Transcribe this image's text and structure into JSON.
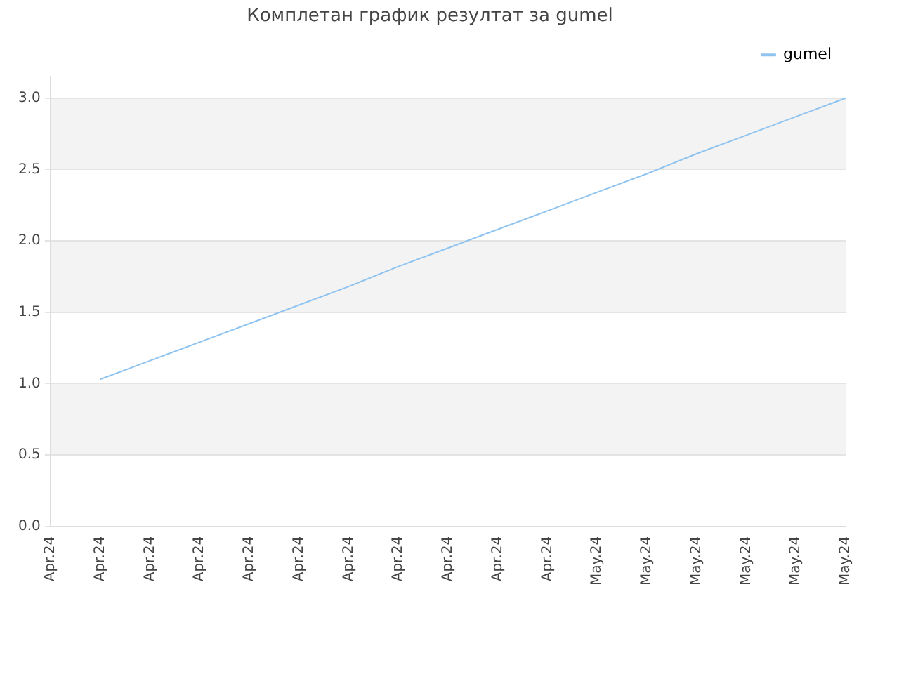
{
  "chart_data": {
    "type": "line",
    "title": "Комплетан график резултат за gumel",
    "categories": [
      "Apr.24",
      "Apr.24",
      "Apr.24",
      "Apr.24",
      "Apr.24",
      "Apr.24",
      "Apr.24",
      "Apr.24",
      "Apr.24",
      "Apr.24",
      "Apr.24",
      "May.24",
      "May.24",
      "May.24",
      "May.24",
      "May.24",
      "May.24"
    ],
    "series": [
      {
        "name": "gumel",
        "color": "#90c4f0",
        "values": [
          null,
          1.03,
          1.16,
          1.29,
          1.42,
          1.55,
          1.68,
          1.82,
          1.95,
          2.08,
          2.21,
          2.34,
          2.47,
          2.61,
          2.74,
          2.87,
          3.0
        ]
      }
    ],
    "ylim": [
      0,
      3.15
    ],
    "yticks": [
      {
        "value": 0,
        "label": "0.0"
      },
      {
        "value": 0.5,
        "label": "0.5"
      },
      {
        "value": 1,
        "label": "1.0"
      },
      {
        "value": 1.5,
        "label": "1.5"
      },
      {
        "value": 2,
        "label": "2.0"
      },
      {
        "value": 2.5,
        "label": "2.5"
      },
      {
        "value": 3,
        "label": "3.0"
      }
    ],
    "grid": "y",
    "legend": "top right",
    "marker": "none",
    "line_style": "solid"
  }
}
